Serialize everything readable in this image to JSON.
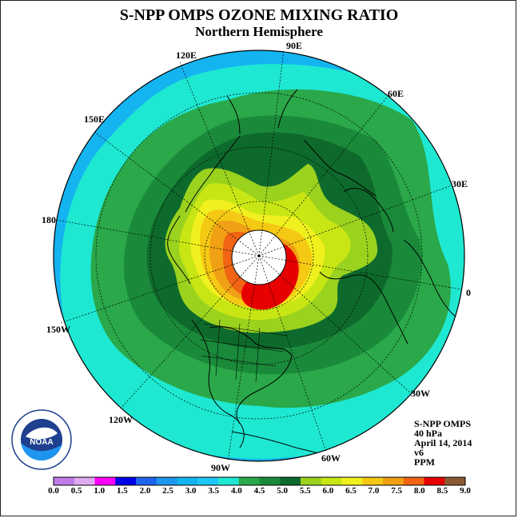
{
  "title": "S-NPP OMPS OZONE MIXING RATIO",
  "subtitle": "Northern Hemisphere",
  "longitude_labels": {
    "lon_90e": "90E",
    "lon_60e": "60E",
    "lon_30e": "30E",
    "lon_0": "0",
    "lon_30w": "30W",
    "lon_60w": "60W",
    "lon_90w": "90W",
    "lon_120w": "120W",
    "lon_150w": "150W",
    "lon_180": "180",
    "lon_150e": "150E",
    "lon_120e": "120E"
  },
  "info": {
    "instrument": "S-NPP OMPS",
    "level": "40 hPa",
    "date": "April 14, 2014",
    "version": "v6",
    "units": "PPM"
  },
  "logo": {
    "text": "NOAA",
    "ring_text": "NATIONAL OCEANIC AND ATMOSPHERIC ADMINISTRATION · U.S. DEPARTMENT OF COMMERCE"
  },
  "colorbar": {
    "ticks": [
      "0.0",
      "0.5",
      "1.0",
      "1.5",
      "2.0",
      "2.5",
      "3.0",
      "3.5",
      "4.0",
      "4.5",
      "5.0",
      "5.5",
      "6.0",
      "6.5",
      "7.0",
      "7.5",
      "8.0",
      "8.5",
      "9.0"
    ],
    "colors": [
      "#c07ce8",
      "#e0aaf0",
      "#ff00ff",
      "#0000e6",
      "#1e64f0",
      "#1e96f0",
      "#14b4f0",
      "#1ec8f5",
      "#1ee8d2",
      "#2aa84a",
      "#1a8a3a",
      "#0e6a2c",
      "#9ad21e",
      "#c8e614",
      "#f0f01e",
      "#f5c814",
      "#f0a014",
      "#f06414",
      "#e60000",
      "#8c5a32"
    ]
  },
  "chart_data": {
    "type": "heatmap",
    "title": "S-NPP OMPS OZONE MIXING RATIO",
    "subtitle": "Northern Hemisphere",
    "projection": "north polar stereographic",
    "pressure_level": "40 hPa",
    "date": "April 14, 2014",
    "units": "PPM",
    "value_range": [
      0.0,
      9.0
    ],
    "contour_interval": 0.5,
    "regions": [
      {
        "name": "pole-no-data",
        "value": null
      },
      {
        "name": "peak",
        "value_range": [
          8.0,
          8.5
        ]
      },
      {
        "name": "core",
        "value_range": [
          6.5,
          8.0
        ]
      },
      {
        "name": "inner-ring",
        "value_range": [
          5.5,
          6.5
        ]
      },
      {
        "name": "mid-latitudes",
        "value_range": [
          4.5,
          5.0
        ]
      },
      {
        "name": "subtropics",
        "value_range": [
          4.0,
          4.5
        ]
      },
      {
        "name": "tropics-edge",
        "value_range": [
          3.5,
          4.0
        ]
      },
      {
        "name": "tropics",
        "value_range": [
          3.0,
          3.5
        ]
      }
    ]
  }
}
